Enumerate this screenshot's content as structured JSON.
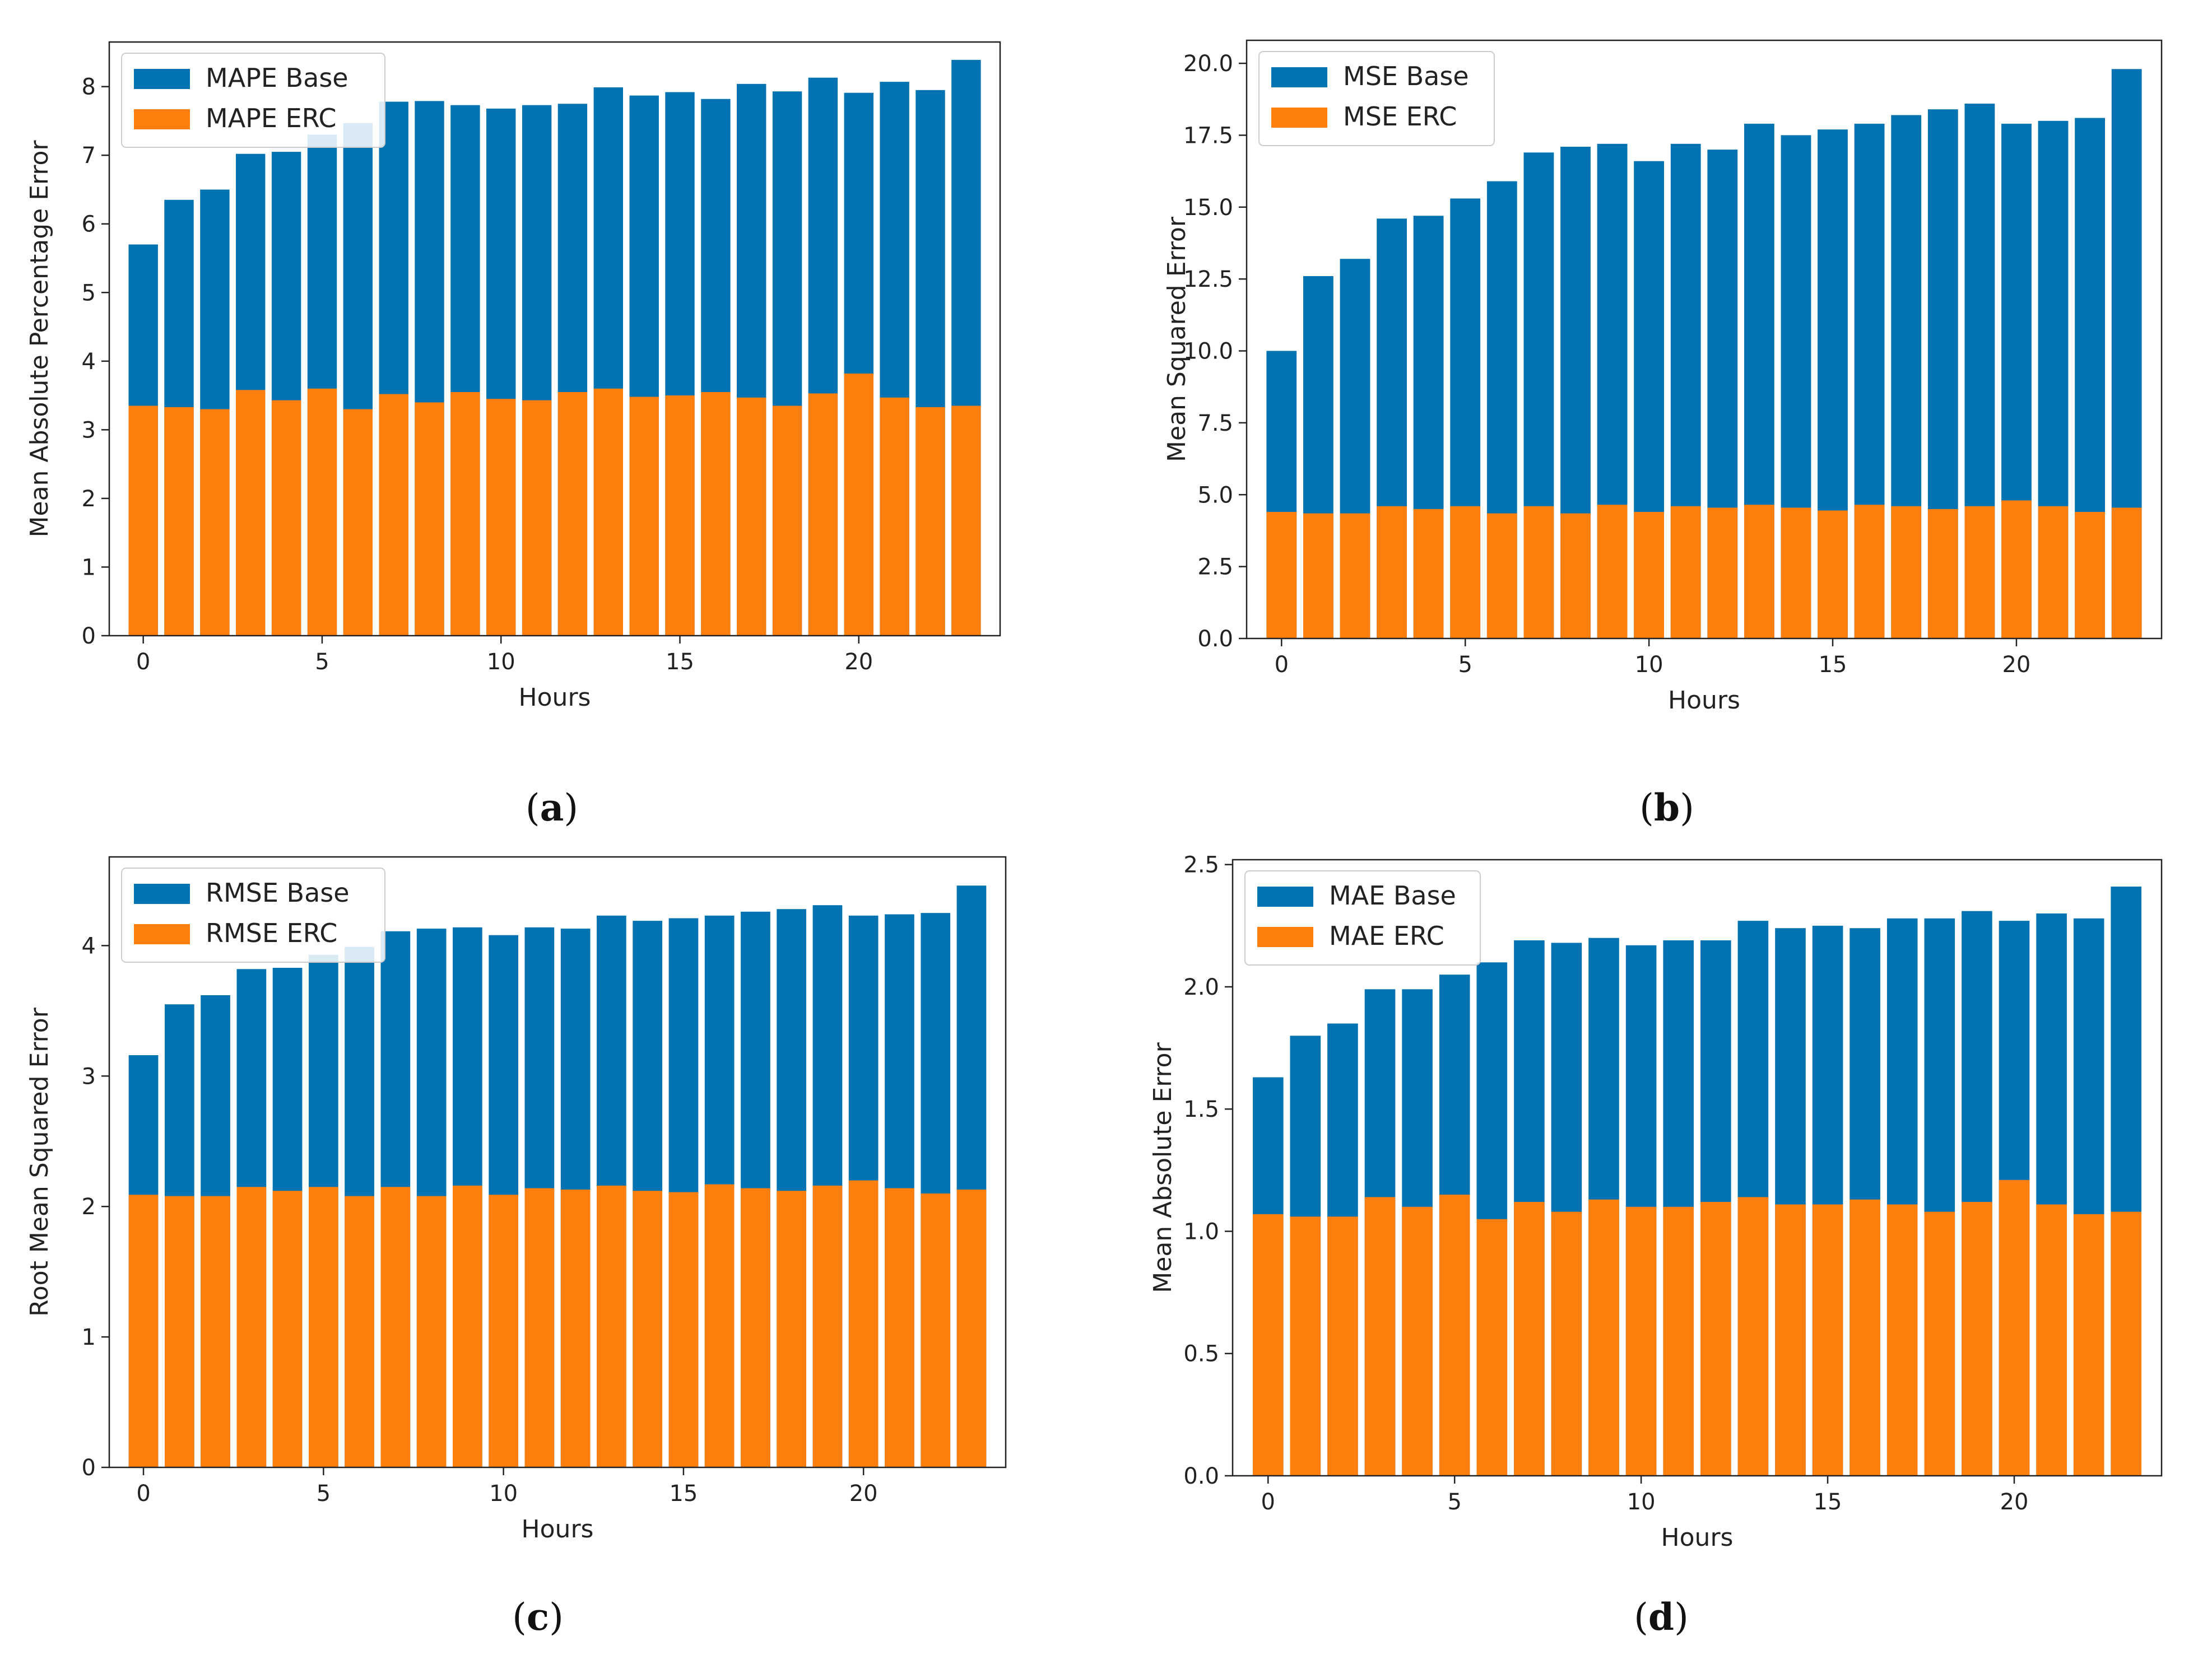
{
  "colors": {
    "base": "#0173b2",
    "erc": "#ff7f0e"
  },
  "chart_data": [
    {
      "type": "bar",
      "panel_label": "a",
      "title": "",
      "xlabel": "Hours",
      "ylabel": "Mean Absolute Percentage Error",
      "x": [
        0,
        1,
        2,
        3,
        4,
        5,
        6,
        7,
        8,
        9,
        10,
        11,
        12,
        13,
        14,
        15,
        16,
        17,
        18,
        19,
        20,
        21,
        22,
        23
      ],
      "x_ticks": [
        0,
        5,
        10,
        15,
        20
      ],
      "x_tick_labels": [
        "0",
        "5",
        "10",
        "15",
        "20"
      ],
      "y_ticks": [
        0,
        1,
        2,
        3,
        4,
        5,
        6,
        7,
        8
      ],
      "y_tick_labels": [
        "0",
        "1",
        "2",
        "3",
        "4",
        "5",
        "6",
        "7",
        "8"
      ],
      "ylim": [
        0,
        8.65
      ],
      "xlim": [
        -0.95,
        23.95
      ],
      "legend_position": "top-left",
      "grid": false,
      "series": [
        {
          "name": "MAPE Base",
          "values": [
            5.7,
            6.35,
            6.5,
            7.02,
            7.05,
            7.3,
            7.47,
            7.78,
            7.79,
            7.73,
            7.68,
            7.73,
            7.75,
            7.99,
            7.87,
            7.92,
            7.82,
            8.04,
            7.93,
            8.13,
            7.91,
            8.07,
            7.95,
            8.39
          ]
        },
        {
          "name": "MAPE ERC",
          "values": [
            3.35,
            3.33,
            3.3,
            3.58,
            3.43,
            3.6,
            3.3,
            3.52,
            3.4,
            3.55,
            3.45,
            3.43,
            3.55,
            3.6,
            3.48,
            3.5,
            3.55,
            3.47,
            3.35,
            3.53,
            3.82,
            3.47,
            3.33,
            3.35
          ]
        }
      ]
    },
    {
      "type": "bar",
      "panel_label": "b",
      "title": "",
      "xlabel": "Hours",
      "ylabel": "Mean Squared Error",
      "x": [
        0,
        1,
        2,
        3,
        4,
        5,
        6,
        7,
        8,
        9,
        10,
        11,
        12,
        13,
        14,
        15,
        16,
        17,
        18,
        19,
        20,
        21,
        22,
        23
      ],
      "x_ticks": [
        0,
        5,
        10,
        15,
        20
      ],
      "x_tick_labels": [
        "0",
        "5",
        "10",
        "15",
        "20"
      ],
      "y_ticks": [
        0,
        2.5,
        5,
        7.5,
        10,
        12.5,
        15,
        17.5,
        20
      ],
      "y_tick_labels": [
        "0.0",
        "2.5",
        "5.0",
        "7.5",
        "10.0",
        "12.5",
        "15.0",
        "17.5",
        "20.0"
      ],
      "ylim": [
        0,
        20.8
      ],
      "xlim": [
        -0.95,
        23.95
      ],
      "legend_position": "top-left",
      "grid": false,
      "series": [
        {
          "name": "MSE Base",
          "values": [
            10.0,
            12.6,
            13.2,
            14.6,
            14.7,
            15.3,
            15.9,
            16.9,
            17.1,
            17.2,
            16.6,
            17.2,
            17.0,
            17.9,
            17.5,
            17.7,
            17.9,
            18.2,
            18.4,
            18.6,
            17.9,
            18.0,
            18.1,
            19.8
          ]
        },
        {
          "name": "MSE ERC",
          "values": [
            4.4,
            4.35,
            4.35,
            4.6,
            4.5,
            4.6,
            4.35,
            4.6,
            4.35,
            4.65,
            4.4,
            4.6,
            4.55,
            4.65,
            4.55,
            4.45,
            4.65,
            4.6,
            4.5,
            4.6,
            4.8,
            4.6,
            4.4,
            4.55
          ]
        }
      ]
    },
    {
      "type": "bar",
      "panel_label": "c",
      "title": "",
      "xlabel": "Hours",
      "ylabel": "Root Mean Squared Error",
      "x": [
        0,
        1,
        2,
        3,
        4,
        5,
        6,
        7,
        8,
        9,
        10,
        11,
        12,
        13,
        14,
        15,
        16,
        17,
        18,
        19,
        20,
        21,
        22,
        23
      ],
      "x_ticks": [
        0,
        5,
        10,
        15,
        20
      ],
      "x_tick_labels": [
        "0",
        "5",
        "10",
        "15",
        "20"
      ],
      "y_ticks": [
        0,
        1,
        2,
        3,
        4
      ],
      "y_tick_labels": [
        "0",
        "1",
        "2",
        "3",
        "4"
      ],
      "ylim": [
        0,
        4.68
      ],
      "xlim": [
        -0.95,
        23.95
      ],
      "legend_position": "top-left",
      "grid": false,
      "series": [
        {
          "name": "RMSE Base",
          "values": [
            3.16,
            3.55,
            3.62,
            3.82,
            3.83,
            3.93,
            3.99,
            4.11,
            4.13,
            4.14,
            4.08,
            4.14,
            4.13,
            4.23,
            4.19,
            4.21,
            4.23,
            4.26,
            4.28,
            4.31,
            4.23,
            4.24,
            4.25,
            4.46
          ]
        },
        {
          "name": "RMSE ERC",
          "values": [
            2.09,
            2.08,
            2.08,
            2.15,
            2.12,
            2.15,
            2.08,
            2.15,
            2.08,
            2.16,
            2.09,
            2.14,
            2.13,
            2.16,
            2.12,
            2.11,
            2.17,
            2.14,
            2.12,
            2.16,
            2.2,
            2.14,
            2.1,
            2.13
          ]
        }
      ]
    },
    {
      "type": "bar",
      "panel_label": "d",
      "title": "",
      "xlabel": "Hours",
      "ylabel": "Mean Absolute Error",
      "x": [
        0,
        1,
        2,
        3,
        4,
        5,
        6,
        7,
        8,
        9,
        10,
        11,
        12,
        13,
        14,
        15,
        16,
        17,
        18,
        19,
        20,
        21,
        22,
        23
      ],
      "x_ticks": [
        0,
        5,
        10,
        15,
        20
      ],
      "x_tick_labels": [
        "0",
        "5",
        "10",
        "15",
        "20"
      ],
      "y_ticks": [
        0,
        0.5,
        1.0,
        1.5,
        2.0,
        2.5
      ],
      "y_tick_labels": [
        "0.0",
        "0.5",
        "1.0",
        "1.5",
        "2.0",
        "2.5"
      ],
      "ylim": [
        0,
        2.52
      ],
      "xlim": [
        -0.95,
        23.95
      ],
      "legend_position": "top-left",
      "grid": false,
      "series": [
        {
          "name": "MAE Base",
          "values": [
            1.63,
            1.8,
            1.85,
            1.99,
            1.99,
            2.05,
            2.1,
            2.19,
            2.18,
            2.2,
            2.17,
            2.19,
            2.19,
            2.27,
            2.24,
            2.25,
            2.24,
            2.28,
            2.28,
            2.31,
            2.27,
            2.3,
            2.28,
            2.41
          ]
        },
        {
          "name": "MAE ERC",
          "values": [
            1.07,
            1.06,
            1.06,
            1.14,
            1.1,
            1.15,
            1.05,
            1.12,
            1.08,
            1.13,
            1.1,
            1.1,
            1.12,
            1.14,
            1.11,
            1.11,
            1.13,
            1.11,
            1.08,
            1.12,
            1.21,
            1.11,
            1.07,
            1.08
          ]
        }
      ]
    }
  ]
}
